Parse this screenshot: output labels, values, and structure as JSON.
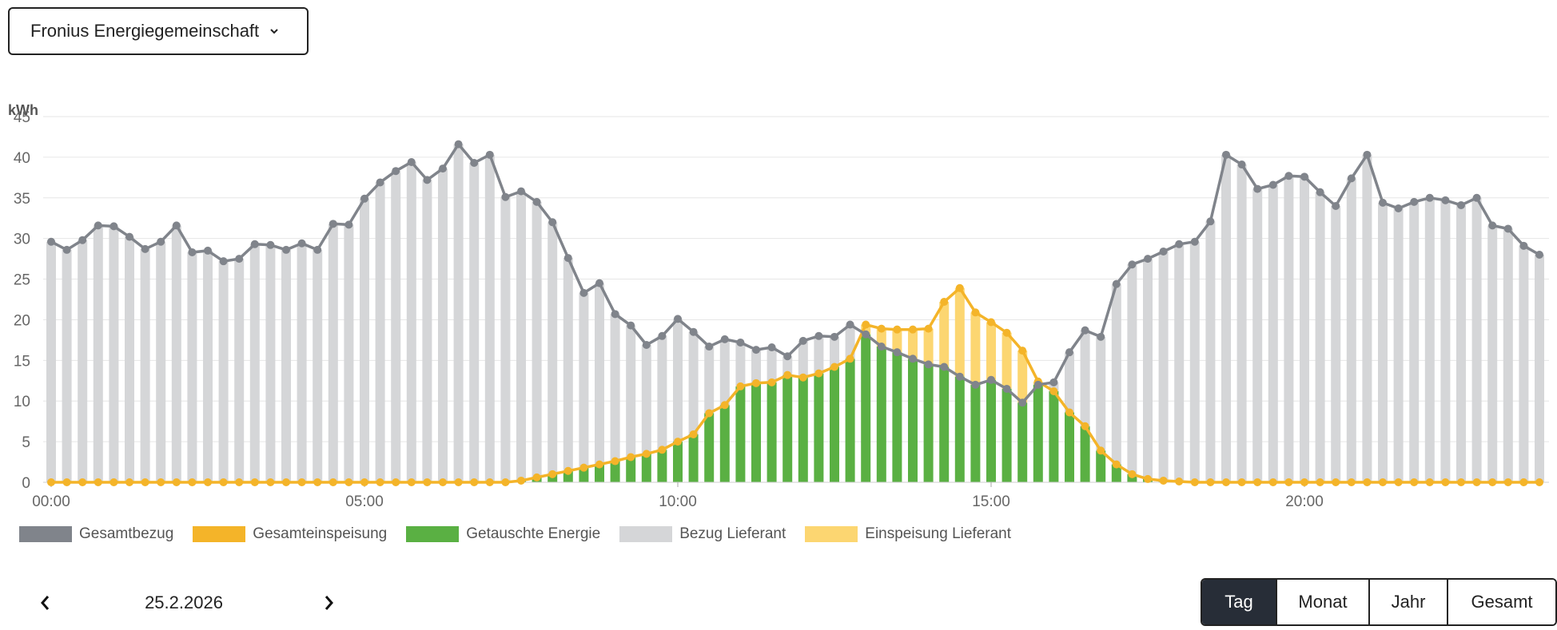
{
  "header": {
    "dropdown_label": "Fronius Energiegemeinschaft"
  },
  "navigation": {
    "date": "25.2.2026",
    "prev_icon": "chevron-left-icon",
    "next_icon": "chevron-right-icon"
  },
  "range_tabs": [
    {
      "label": "Tag",
      "active": true
    },
    {
      "label": "Monat",
      "active": false
    },
    {
      "label": "Jahr",
      "active": false
    },
    {
      "label": "Gesamt",
      "active": false
    }
  ],
  "colors": {
    "gesamtbezug": "#80848b",
    "gesamteinspeisung": "#f4b429",
    "getauschte_energie": "#5ab043",
    "bezug_lieferant": "#d5d6d8",
    "einspeisung_lieferant": "#fcd671",
    "grid": "#e6e6e6"
  },
  "chart_data": {
    "type": "bar",
    "ylabel": "kWh",
    "ylim": [
      0,
      45
    ],
    "yticks": [
      0,
      5,
      10,
      15,
      20,
      25,
      30,
      35,
      40,
      45
    ],
    "xticks": [
      {
        "label": "00:00",
        "index": 0
      },
      {
        "label": "05:00",
        "index": 20
      },
      {
        "label": "10:00",
        "index": 40
      },
      {
        "label": "15:00",
        "index": 60
      },
      {
        "label": "20:00",
        "index": 80
      }
    ],
    "interval": "15min",
    "legend": [
      "Gesamtbezug",
      "Gesamteinspeisung",
      "Getauschte Energie",
      "Bezug Lieferant",
      "Einspeisung Lieferant"
    ],
    "series": [
      {
        "name": "Gesamtbezug",
        "kind": "line",
        "values": [
          29.6,
          28.6,
          29.8,
          31.6,
          31.5,
          30.2,
          28.7,
          29.6,
          31.6,
          28.3,
          28.5,
          27.2,
          27.5,
          29.3,
          29.2,
          28.6,
          29.4,
          28.6,
          31.8,
          31.7,
          34.9,
          36.9,
          38.3,
          39.4,
          37.2,
          38.6,
          41.6,
          39.3,
          40.3,
          35.1,
          35.8,
          34.5,
          32.0,
          27.6,
          23.3,
          24.5,
          20.7,
          19.3,
          16.9,
          18.0,
          20.1,
          18.5,
          16.7,
          17.6,
          17.2,
          16.3,
          16.6,
          15.5,
          17.4,
          18.0,
          17.9,
          19.4,
          18.2,
          16.7,
          16.0,
          15.2,
          14.5,
          14.2,
          13.0,
          12.0,
          12.6,
          11.5,
          9.8,
          12.0,
          12.3,
          16.0,
          18.7,
          17.9,
          24.4,
          26.8,
          27.5,
          28.4,
          29.3,
          29.6,
          32.1,
          40.3,
          39.1,
          36.1,
          36.6,
          37.7,
          37.6,
          35.7,
          34.0,
          37.4,
          40.3,
          34.4,
          33.7,
          34.5,
          35.0,
          34.7,
          34.1,
          35.0,
          31.6,
          31.2,
          29.1,
          28.0
        ]
      },
      {
        "name": "Gesamteinspeisung",
        "kind": "line",
        "values": [
          0,
          0,
          0,
          0,
          0,
          0,
          0,
          0,
          0,
          0,
          0,
          0,
          0,
          0,
          0,
          0,
          0,
          0,
          0,
          0,
          0,
          0,
          0,
          0,
          0,
          0,
          0,
          0,
          0,
          0,
          0.2,
          0.6,
          1.0,
          1.4,
          1.8,
          2.2,
          2.6,
          3.1,
          3.5,
          4.0,
          5.0,
          5.9,
          8.5,
          9.5,
          11.8,
          12.2,
          12.3,
          13.2,
          12.9,
          13.4,
          14.2,
          15.2,
          19.4,
          18.9,
          18.8,
          18.8,
          18.9,
          22.2,
          23.9,
          20.9,
          19.7,
          18.4,
          16.2,
          12.4,
          11.2,
          8.6,
          6.9,
          3.9,
          2.2,
          1.0,
          0.4,
          0.2,
          0.1,
          0,
          0,
          0,
          0,
          0,
          0,
          0,
          0,
          0,
          0,
          0,
          0,
          0,
          0,
          0,
          0,
          0,
          0,
          0,
          0,
          0,
          0,
          0
        ]
      },
      {
        "name": "Getauschte Energie",
        "kind": "bar",
        "note": "min(Gesamtbezug, Gesamteinspeisung)"
      },
      {
        "name": "Bezug Lieferant",
        "kind": "bar",
        "note": "Gesamtbezug above Getauschte Energie"
      },
      {
        "name": "Einspeisung Lieferant",
        "kind": "bar",
        "note": "Gesamteinspeisung above Getauschte Energie"
      }
    ]
  }
}
